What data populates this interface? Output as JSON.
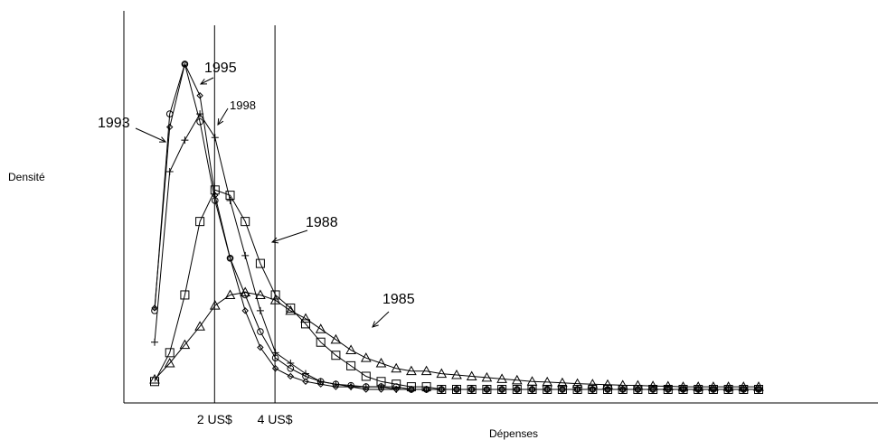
{
  "chart_data": {
    "type": "line",
    "title": "",
    "xlabel": "Dépenses",
    "ylabel": "Densité",
    "reference_lines": [
      {
        "label": "2 US$",
        "x": 5
      },
      {
        "label": "4 US$",
        "x": 9
      }
    ],
    "grid": false,
    "legend": "none",
    "series": [
      {
        "name": "1985",
        "marker": "triangle",
        "x": [
          1,
          2,
          3,
          4,
          5,
          6,
          7,
          8,
          9,
          10,
          11,
          12,
          13,
          14,
          15,
          16,
          17,
          18,
          19,
          20,
          21,
          22,
          23,
          24,
          25,
          26,
          27,
          28,
          29,
          30,
          31,
          32,
          33,
          34,
          35,
          36,
          37,
          38,
          39,
          40,
          41
        ],
        "y": [
          0.038,
          0.1,
          0.17,
          0.24,
          0.32,
          0.36,
          0.37,
          0.36,
          0.34,
          0.3,
          0.27,
          0.23,
          0.19,
          0.15,
          0.12,
          0.1,
          0.08,
          0.07,
          0.07,
          0.06,
          0.055,
          0.05,
          0.045,
          0.04,
          0.035,
          0.03,
          0.028,
          0.025,
          0.022,
          0.02,
          0.018,
          0.016,
          0.015,
          0.013,
          0.012,
          0.01,
          0.01,
          0.01,
          0.01,
          0.01,
          0.01
        ]
      },
      {
        "name": "1988",
        "marker": "square",
        "x": [
          1,
          2,
          3,
          4,
          5,
          6,
          7,
          8,
          9,
          10,
          11,
          12,
          13,
          14,
          15,
          16,
          17,
          18,
          19,
          20,
          21,
          22,
          23,
          24,
          25,
          26,
          27,
          28,
          29,
          30,
          31,
          32,
          33,
          34,
          35,
          36,
          37,
          38,
          39,
          40,
          41
        ],
        "y": [
          0.03,
          0.14,
          0.36,
          0.64,
          0.76,
          0.74,
          0.64,
          0.48,
          0.36,
          0.31,
          0.25,
          0.18,
          0.13,
          0.09,
          0.05,
          0.03,
          0.02,
          0.01,
          0.01,
          0,
          0,
          0,
          0,
          0,
          0,
          0,
          0,
          0,
          0,
          0,
          0,
          0,
          0,
          0,
          0,
          0,
          0,
          0,
          0,
          0,
          0
        ]
      },
      {
        "name": "1993",
        "marker": "circle",
        "x": [
          1,
          2,
          3,
          4,
          5,
          6,
          7,
          8,
          9,
          10,
          11,
          12,
          13,
          14,
          15,
          16,
          17,
          18,
          19,
          20,
          21,
          22,
          23,
          24,
          25,
          26,
          27,
          28,
          29,
          30,
          31,
          32,
          33,
          34,
          35,
          36,
          37,
          38,
          39,
          40,
          41
        ],
        "y": [
          0.3,
          1.05,
          1.24,
          1.02,
          0.72,
          0.5,
          0.36,
          0.22,
          0.12,
          0.08,
          0.05,
          0.03,
          0.02,
          0.015,
          0.01,
          0.01,
          0.01,
          0,
          0,
          0,
          0,
          0,
          0,
          0,
          0,
          0,
          0,
          0,
          0,
          0,
          0,
          0,
          0,
          0,
          0,
          0,
          0,
          0,
          0,
          0,
          0
        ]
      },
      {
        "name": "1995",
        "marker": "diamond",
        "x": [
          1,
          2,
          3,
          4,
          5,
          6,
          7,
          8,
          9,
          10,
          11,
          12,
          13,
          14,
          15,
          16,
          17,
          18,
          19,
          20,
          21,
          22,
          23,
          24,
          25,
          26,
          27,
          28,
          29,
          30,
          31,
          32,
          33,
          34,
          35,
          36,
          37,
          38,
          39,
          40,
          41
        ],
        "y": [
          0.31,
          1.0,
          1.24,
          1.12,
          0.74,
          0.5,
          0.3,
          0.16,
          0.08,
          0.05,
          0.03,
          0.02,
          0.01,
          0.01,
          0,
          0,
          0,
          0,
          0,
          0,
          0,
          0,
          0,
          0,
          0,
          0,
          0,
          0,
          0,
          0,
          0,
          0,
          0,
          0,
          0,
          0,
          0,
          0,
          0,
          0,
          0
        ]
      },
      {
        "name": "1998",
        "marker": "plus",
        "x": [
          1,
          2,
          3,
          4,
          5,
          6,
          7,
          8,
          9,
          10,
          11,
          12,
          13,
          14,
          15,
          16,
          17,
          18,
          19,
          20,
          21,
          22,
          23,
          24,
          25,
          26,
          27,
          28,
          29,
          30,
          31,
          32,
          33,
          34,
          35,
          36,
          37,
          38,
          39,
          40,
          41
        ],
        "y": [
          0.18,
          0.83,
          0.95,
          1.05,
          0.96,
          0.72,
          0.51,
          0.3,
          0.14,
          0.1,
          0.06,
          0.03,
          0.02,
          0.01,
          0.01,
          0.01,
          0,
          0,
          0,
          0,
          0,
          0,
          0,
          0,
          0,
          0,
          0,
          0,
          0,
          0,
          0,
          0,
          0,
          0,
          0,
          0,
          0,
          0,
          0,
          0,
          0
        ]
      }
    ],
    "annotations": [
      {
        "text": "1993",
        "series": "1993"
      },
      {
        "text": "1995",
        "series": "1995"
      },
      {
        "text": "1998",
        "series": "1998"
      },
      {
        "text": "1988",
        "series": "1988"
      },
      {
        "text": "1985",
        "series": "1985"
      }
    ]
  }
}
